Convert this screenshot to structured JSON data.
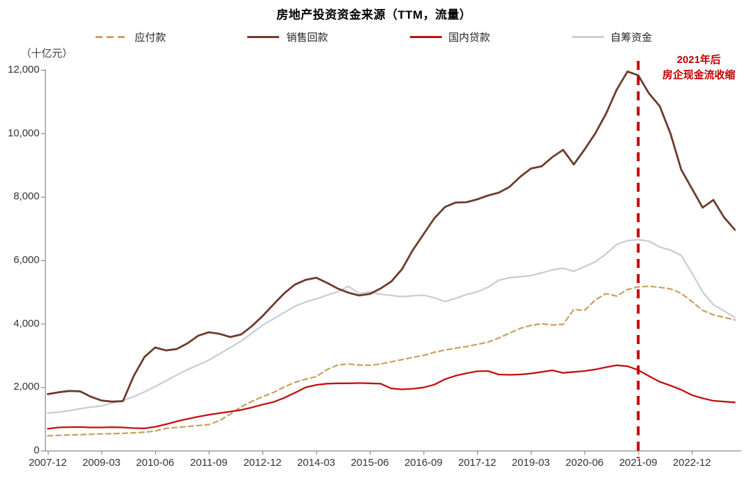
{
  "title": "房地产投资资金来源（TTM，流量）",
  "y_axis_unit": "（十亿元）",
  "annotation": {
    "line1": "2021年后",
    "line2": "房企现金流收缩",
    "color": "#C00000"
  },
  "chart_data": {
    "type": "line",
    "title": "房地产投资资金来源（TTM，流量）",
    "ylabel": "（十亿元）",
    "ylim": [
      0,
      12000
    ],
    "y_tick_step": 2000,
    "y_tick_labels": [
      "0",
      "2,000",
      "4,000",
      "6,000",
      "8,000",
      "10,000",
      "12,000"
    ],
    "x_tick_labels": [
      "2007-12",
      "2009-03",
      "2010-06",
      "2011-09",
      "2012-12",
      "2014-03",
      "2015-06",
      "2016-09",
      "2017-12",
      "2019-03",
      "2020-06",
      "2021-09",
      "2022-12"
    ],
    "legend_position": "top",
    "grid": false,
    "x": [
      "2007-12",
      "2008-03",
      "2008-06",
      "2008-09",
      "2008-12",
      "2009-03",
      "2009-06",
      "2009-09",
      "2009-12",
      "2010-03",
      "2010-06",
      "2010-09",
      "2010-12",
      "2011-03",
      "2011-06",
      "2011-09",
      "2011-12",
      "2012-03",
      "2012-06",
      "2012-09",
      "2012-12",
      "2013-03",
      "2013-06",
      "2013-09",
      "2013-12",
      "2014-03",
      "2014-06",
      "2014-09",
      "2014-12",
      "2015-03",
      "2015-06",
      "2015-09",
      "2015-12",
      "2016-03",
      "2016-06",
      "2016-09",
      "2016-12",
      "2017-03",
      "2017-06",
      "2017-09",
      "2017-12",
      "2018-03",
      "2018-06",
      "2018-09",
      "2018-12",
      "2019-03",
      "2019-06",
      "2019-09",
      "2019-12",
      "2020-03",
      "2020-06",
      "2020-09",
      "2020-12",
      "2021-03",
      "2021-06",
      "2021-09",
      "2021-12",
      "2022-03",
      "2022-06",
      "2022-09",
      "2022-12",
      "2023-03",
      "2023-06",
      "2023-09",
      "2023-12"
    ],
    "series": [
      {
        "name": "应付款",
        "color": "#C9A266",
        "dashed": true,
        "values": [
          470,
          480,
          495,
          505,
          515,
          525,
          535,
          545,
          560,
          580,
          620,
          700,
          730,
          760,
          790,
          820,
          950,
          1150,
          1380,
          1550,
          1700,
          1830,
          2000,
          2150,
          2250,
          2330,
          2550,
          2700,
          2730,
          2700,
          2690,
          2730,
          2800,
          2870,
          2940,
          3000,
          3100,
          3170,
          3230,
          3280,
          3350,
          3420,
          3550,
          3700,
          3850,
          3950,
          4000,
          3960,
          3980,
          4450,
          4420,
          4750,
          4950,
          4870,
          5080,
          5160,
          5180,
          5150,
          5100,
          4960,
          4700,
          4420,
          4280,
          4200,
          4120
        ]
      },
      {
        "name": "销售回款",
        "color": "#6E3A2C",
        "dashed": false,
        "values": [
          1780,
          1840,
          1880,
          1870,
          1700,
          1580,
          1545,
          1560,
          2350,
          2950,
          3250,
          3160,
          3200,
          3380,
          3620,
          3730,
          3680,
          3580,
          3660,
          3920,
          4240,
          4600,
          4950,
          5230,
          5380,
          5450,
          5290,
          5110,
          4980,
          4890,
          4940,
          5110,
          5330,
          5720,
          6320,
          6820,
          7320,
          7680,
          7820,
          7830,
          7920,
          8040,
          8130,
          8310,
          8630,
          8890,
          8960,
          9250,
          9480,
          9020,
          9490,
          10000,
          10620,
          11380,
          11950,
          11830,
          11260,
          10860,
          10000,
          8860,
          8260,
          7660,
          7900,
          7350,
          6960
        ]
      },
      {
        "name": "国内贷款",
        "color": "#C40E0E",
        "dashed": false,
        "values": [
          690,
          730,
          740,
          745,
          730,
          730,
          740,
          730,
          710,
          700,
          750,
          830,
          920,
          1000,
          1070,
          1130,
          1180,
          1230,
          1280,
          1360,
          1450,
          1530,
          1660,
          1820,
          1990,
          2070,
          2110,
          2120,
          2120,
          2130,
          2120,
          2110,
          1960,
          1930,
          1950,
          1990,
          2080,
          2250,
          2360,
          2440,
          2500,
          2510,
          2400,
          2390,
          2400,
          2430,
          2480,
          2530,
          2450,
          2480,
          2510,
          2560,
          2630,
          2690,
          2660,
          2540,
          2350,
          2170,
          2050,
          1920,
          1750,
          1650,
          1570,
          1545,
          1520
        ]
      },
      {
        "name": "自筹资金",
        "color": "#C9CDD6",
        "dashed": false,
        "values": [
          1180,
          1215,
          1260,
          1320,
          1370,
          1410,
          1500,
          1580,
          1700,
          1850,
          2020,
          2200,
          2380,
          2550,
          2700,
          2850,
          3050,
          3250,
          3450,
          3700,
          3950,
          4150,
          4350,
          4550,
          4680,
          4780,
          4900,
          5000,
          5180,
          4950,
          5000,
          4930,
          4890,
          4850,
          4880,
          4900,
          4820,
          4700,
          4800,
          4920,
          5000,
          5150,
          5370,
          5450,
          5480,
          5520,
          5600,
          5700,
          5750,
          5650,
          5800,
          5950,
          6200,
          6500,
          6620,
          6650,
          6600,
          6420,
          6320,
          6150,
          5600,
          5000,
          4600,
          4400,
          4200
        ]
      }
    ],
    "vline": {
      "x_label": "2021-09",
      "x_index": 55,
      "color": "#C00000",
      "style": "dashed"
    }
  }
}
